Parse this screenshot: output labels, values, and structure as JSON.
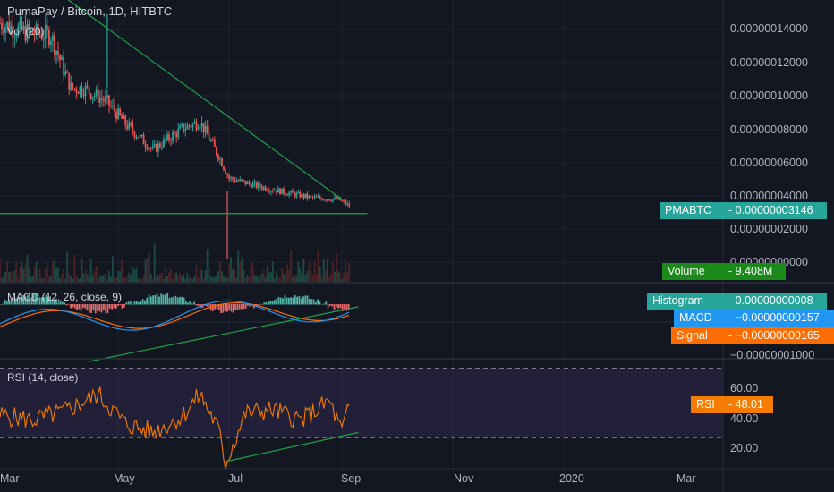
{
  "colors": {
    "bg": "#131722",
    "grid": "#1e222d",
    "up": "#26a69a",
    "down": "#ef5350",
    "trendline": "#1fa34a",
    "macd": "#2196f3",
    "signal": "#ff6d00",
    "rsi": "#f57c00",
    "rsi_band": "#7e57c2",
    "pair_tag": "#26a69a",
    "volume_tag": "#1b8a1b",
    "rsi_tag": "#f57c00"
  },
  "header": {
    "symbol_title": "PumaPay / Bitcoin, 1D, HITBTC",
    "volume_study": "Vol (20)",
    "macd_study": "MACD (12, 26, close, 9)",
    "rsi_study": "RSI (14, close)"
  },
  "tags": {
    "pair": {
      "name": "PMABTC",
      "value": "0.00000003146"
    },
    "volume": {
      "name": "Volume",
      "value": "9.408M"
    },
    "histogram": {
      "name": "Histogram",
      "value": "0.00000000008"
    },
    "macd": {
      "name": "MACD",
      "value": "−0.00000000157"
    },
    "signal": {
      "name": "Signal",
      "value": "−0.00000000165"
    },
    "rsi": {
      "name": "RSI",
      "value": "48.01"
    }
  },
  "price_axis_labels": [
    "0.00000014000",
    "0.00000012000",
    "0.00000010000",
    "0.00000008000",
    "0.00000006000",
    "0.00000004000",
    "0.00000002000",
    "0.00000000000"
  ],
  "macd_axis_labels": [
    "−0.00000001000"
  ],
  "rsi_axis_labels": [
    "60.00",
    "40.00",
    "20.00"
  ],
  "time_axis_labels": [
    "Mar",
    "May",
    "Jul",
    "Sep",
    "Nov",
    "2020",
    "Mar"
  ],
  "chart_data": [
    {
      "type": "candlestick",
      "title": "PumaPay / Bitcoin, 1D, HITBTC",
      "price_ylim": [
        0.0,
        1.48e-07
      ],
      "price_path": {
        "dates": [
          "2019-02-25",
          "2019-03-10",
          "2019-03-25",
          "2019-04-05",
          "2019-04-12",
          "2019-04-25",
          "2019-05-05",
          "2019-05-20",
          "2019-06-05",
          "2019-06-15",
          "2019-06-25",
          "2019-07-01",
          "2019-07-15",
          "2019-08-01",
          "2019-08-15",
          "2019-08-30",
          "2019-09-05"
        ],
        "close": [
          1.35e-07,
          1.3e-07,
          1.28e-07,
          9.8e-08,
          9.8e-08,
          9e-08,
          7.8e-08,
          6.3e-08,
          7.5e-08,
          7.9e-08,
          6e-08,
          4.7e-08,
          4.3e-08,
          3.9e-08,
          3.6e-08,
          3.5e-08,
          3.15e-08
        ]
      },
      "notable_spike_low": {
        "date": "2019-06-30",
        "value": 1.2e-09
      },
      "notable_spike_high": {
        "date": "2019-04-25",
        "value": 1.4e-07
      },
      "trendlines": [
        {
          "kind": "descending resistance",
          "from": {
            "date": "2019-04-01",
            "value": 1.5e-07
          },
          "to": {
            "date": "2019-09-01",
            "value": 3.5e-08
          }
        },
        {
          "kind": "horizontal support",
          "from": {
            "date": "2019-02-25",
            "value": 2.7e-08
          },
          "to": {
            "date": "2019-09-15",
            "value": 2.7e-08
          }
        }
      ],
      "last_price": 3.146e-08
    },
    {
      "type": "bar",
      "title": "Vol (20)",
      "last_value": "9.408M"
    },
    {
      "type": "line",
      "title": "MACD (12, 26, close, 9)",
      "series": [
        {
          "name": "MACD",
          "last_value": -1.57e-09
        },
        {
          "name": "Signal",
          "last_value": -1.65e-09
        },
        {
          "name": "Histogram",
          "last_value": 8e-11
        }
      ]
    },
    {
      "type": "line",
      "title": "RSI (14, close)",
      "ylim": [
        10,
        76
      ],
      "bands": [
        30,
        70
      ],
      "series": [
        {
          "name": "RSI",
          "dates": [
            "2019-02-25",
            "2019-03-15",
            "2019-04-01",
            "2019-04-20",
            "2019-05-05",
            "2019-05-20",
            "2019-06-05",
            "2019-06-15",
            "2019-06-25",
            "2019-06-29",
            "2019-07-10",
            "2019-07-25",
            "2019-08-10",
            "2019-08-25",
            "2019-09-01",
            "2019-09-05"
          ],
          "values": [
            43,
            40,
            45,
            55,
            38,
            33,
            42,
            55,
            35,
            15,
            44,
            46,
            40,
            51,
            33,
            48
          ]
        }
      ],
      "last_value": 48.01
    }
  ]
}
